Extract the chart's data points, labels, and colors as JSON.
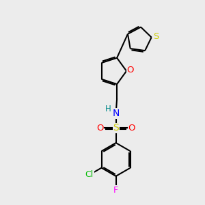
{
  "background_color": "#ececec",
  "bond_color": "#000000",
  "bond_width": 1.5,
  "atom_colors": {
    "S_thio": "#cccc00",
    "S_sulfonyl": "#cccc00",
    "O": "#ff0000",
    "N": "#0000ff",
    "Cl": "#00bb00",
    "F": "#ff00ff",
    "H": "#008888"
  },
  "font_size": 9
}
